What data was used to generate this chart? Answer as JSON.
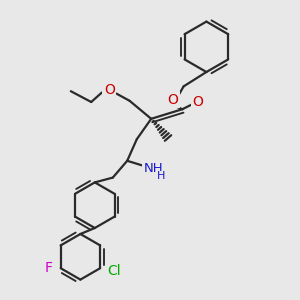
{
  "bg_color": "#e8e8e8",
  "bond_color": "#2a2a2a",
  "bond_lw": 1.6,
  "atom_colors": {
    "O": "#cc0000",
    "N": "#1a1acc",
    "F": "#cc00cc",
    "Cl": "#00aa00",
    "C": "#2a2a2a"
  },
  "font_size": 9.0,
  "dpi": 100,
  "figsize": [
    3.0,
    3.0
  ]
}
